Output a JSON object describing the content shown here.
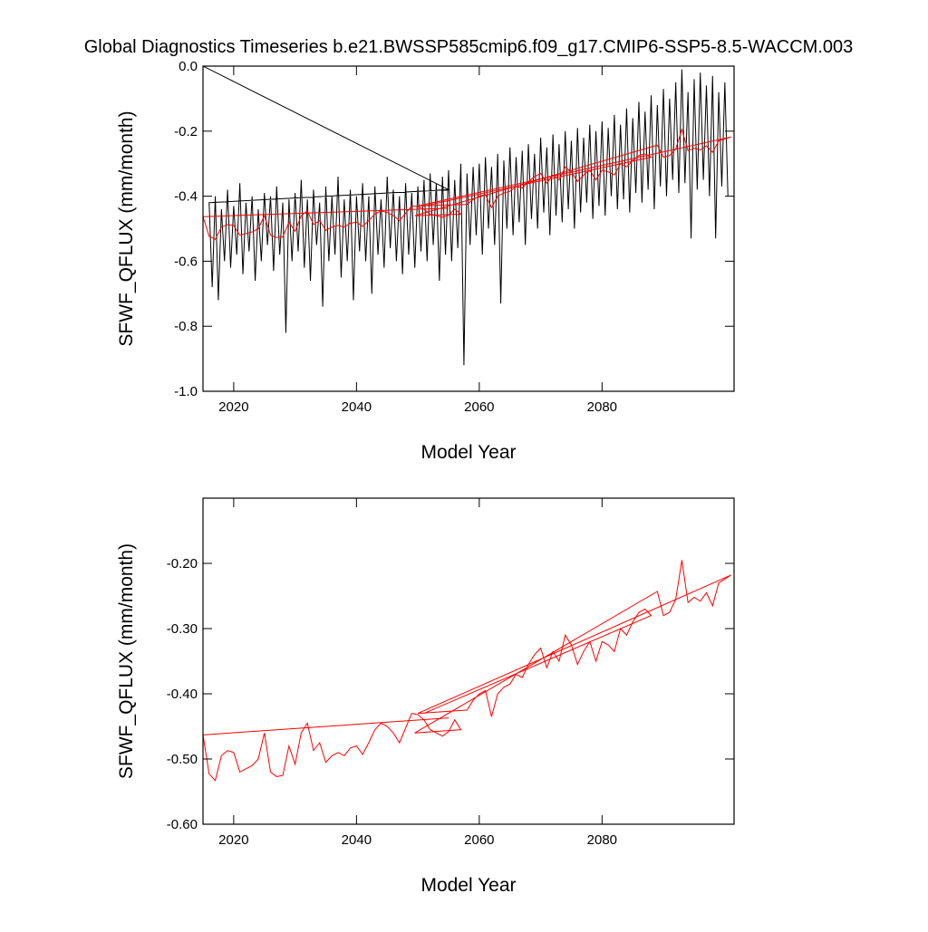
{
  "chart_data": [
    {
      "type": "line",
      "title": "Global Diagnostics Timeseries b.e21.BWSSP585cmip6.f09_g17.CMIP6-SSP5-8.5-WACCM.003",
      "x_label": "Model Year",
      "y_label": "SFWF_QFLUX (mm/month)",
      "xlim": [
        2015,
        2101.5
      ],
      "xticks": [
        2020,
        2040,
        2060,
        2080
      ],
      "ylim": [
        -1,
        0
      ],
      "yticks": [
        {
          "value": 0,
          "label": "0.0"
        },
        -0.2,
        -0.4,
        -0.6,
        -0.8,
        {
          "value": -1,
          "label": "-1.0"
        }
      ],
      "series": [
        {
          "color": "#000000",
          "x": [
            2015,
            2055,
            2016,
            2016.5,
            2017,
            2017.5,
            2018,
            2018.5,
            2019,
            2019.5,
            2020,
            2020.5,
            2021,
            2021.5,
            2022,
            2022.5,
            2023,
            2023.5,
            2024,
            2024.5,
            2025,
            2025.5,
            2026,
            2026.5,
            2027,
            2027.5,
            2028,
            2028.5,
            2029,
            2029.5,
            2030,
            2030.5,
            2031,
            2031.5,
            2032,
            2032.5,
            2033,
            2033.5,
            2034,
            2034.5,
            2035,
            2035.5,
            2036,
            2036.5,
            2037,
            2037.5,
            2038,
            2038.5,
            2039,
            2039.5,
            2040,
            2040.5,
            2041,
            2041.5,
            2042,
            2042.5,
            2043,
            2043.5,
            2044,
            2044.5,
            2045,
            2045.5,
            2046,
            2046.5,
            2047,
            2047.5,
            2048,
            2048.5,
            2049,
            2049.5,
            2050,
            2050.5,
            2051,
            2051.5,
            2052,
            2052.5,
            2053,
            2053.5,
            2054,
            2054.5,
            2055,
            2055.5,
            2056,
            2056.5,
            2057,
            2057.5,
            2058,
            2058.5,
            2059,
            2059.5,
            2060,
            2060.5,
            2061,
            2061.5,
            2062,
            2062.5,
            2063,
            2063.5,
            2064,
            2064.5,
            2065,
            2065.5,
            2066,
            2066.5,
            2067,
            2067.5,
            2068,
            2068.5,
            2069,
            2069.5,
            2070,
            2070.5,
            2071,
            2071.5,
            2072,
            2072.5,
            2073,
            2073.5,
            2074,
            2074.5,
            2075,
            2075.5,
            2076,
            2076.5,
            2077,
            2077.5,
            2078,
            2078.5,
            2079,
            2079.5,
            2080,
            2080.5,
            2081,
            2081.5,
            2082,
            2082.5,
            2083,
            2083.5,
            2084,
            2084.5,
            2085,
            2085.5,
            2086,
            2086.5,
            2087,
            2087.5,
            2088,
            2088.5,
            2089,
            2089.5,
            2090,
            2090.5,
            2091,
            2091.5,
            2092,
            2092.5,
            2093,
            2093.5,
            2094,
            2094.5,
            2095,
            2095.5,
            2096,
            2096.5,
            2097,
            2097.5,
            2098,
            2098.5,
            2099,
            2099.5,
            2100,
            2100.5
          ],
          "values": [
            0,
            -0.38,
            -0.42,
            -0.68,
            -0.4,
            -0.72,
            -0.44,
            -0.6,
            -0.38,
            -0.62,
            -0.43,
            -0.58,
            -0.36,
            -0.64,
            -0.42,
            -0.57,
            -0.4,
            -0.66,
            -0.44,
            -0.6,
            -0.39,
            -0.55,
            -0.4,
            -0.63,
            -0.37,
            -0.58,
            -0.42,
            -0.82,
            -0.41,
            -0.6,
            -0.39,
            -0.57,
            -0.35,
            -0.62,
            -0.41,
            -0.66,
            -0.38,
            -0.55,
            -0.42,
            -0.74,
            -0.37,
            -0.6,
            -0.4,
            -0.58,
            -0.34,
            -0.65,
            -0.41,
            -0.6,
            -0.38,
            -0.72,
            -0.4,
            -0.57,
            -0.36,
            -0.6,
            -0.4,
            -0.7,
            -0.37,
            -0.58,
            -0.41,
            -0.62,
            -0.34,
            -0.56,
            -0.38,
            -0.6,
            -0.4,
            -0.64,
            -0.36,
            -0.58,
            -0.39,
            -0.62,
            -0.37,
            -0.57,
            -0.35,
            -0.6,
            -0.33,
            -0.55,
            -0.36,
            -0.66,
            -0.34,
            -0.58,
            -0.32,
            -0.6,
            -0.35,
            -0.56,
            -0.3,
            -0.92,
            -0.33,
            -0.55,
            -0.31,
            -0.52,
            -0.3,
            -0.58,
            -0.28,
            -0.5,
            -0.31,
            -0.55,
            -0.27,
            -0.73,
            -0.29,
            -0.5,
            -0.25,
            -0.52,
            -0.28,
            -0.48,
            -0.26,
            -0.55,
            -0.24,
            -0.47,
            -0.27,
            -0.5,
            -0.22,
            -0.45,
            -0.25,
            -0.52,
            -0.21,
            -0.46,
            -0.24,
            -0.48,
            -0.2,
            -0.44,
            -0.23,
            -0.5,
            -0.19,
            -0.45,
            -0.22,
            -0.42,
            -0.18,
            -0.47,
            -0.2,
            -0.43,
            -0.17,
            -0.46,
            -0.19,
            -0.4,
            -0.15,
            -0.44,
            -0.18,
            -0.41,
            -0.13,
            -0.45,
            -0.16,
            -0.39,
            -0.11,
            -0.42,
            -0.14,
            -0.38,
            -0.09,
            -0.44,
            -0.12,
            -0.37,
            -0.07,
            -0.4,
            -0.1,
            -0.35,
            -0.05,
            -0.39,
            -0.01,
            -0.36,
            -0.08,
            -0.53,
            -0.04,
            -0.38,
            -0.02,
            -0.35,
            -0.06,
            -0.4,
            -0.03,
            -0.53,
            -0.08,
            -0.37,
            -0.05,
            -0.4
          ]
        },
        {
          "color": "#ff0000",
          "x": [
            2055,
            2015,
            2016,
            2017,
            2018,
            2019,
            2020,
            2021,
            2022,
            2023,
            2024,
            2025,
            2026,
            2027,
            2028,
            2029,
            2030,
            2031,
            2032,
            2033,
            2034,
            2035,
            2036,
            2037,
            2038,
            2039,
            2040,
            2041,
            2042,
            2043,
            2044,
            2045,
            2046,
            2047,
            2049,
            2050,
            2051,
            2052,
            2053,
            2054,
            2055,
            2056,
            2057,
            2049.5,
            2089,
            2090,
            2091,
            2092,
            2093,
            2094,
            2095,
            2096,
            2097,
            2098,
            2099,
            2101,
            2050,
            2058,
            2059,
            2060,
            2061,
            2062,
            2063,
            2064,
            2065,
            2066,
            2067,
            2068,
            2069,
            2070,
            2071,
            2072,
            2073,
            2074,
            2075,
            2076,
            2077,
            2078,
            2079,
            2080,
            2081,
            2082,
            2083,
            2084,
            2085,
            2086,
            2087,
            2088,
            2051,
            2088
          ],
          "values": [
            -0.437,
            -0.463,
            -0.523,
            -0.533,
            -0.495,
            -0.487,
            -0.49,
            -0.52,
            -0.515,
            -0.51,
            -0.5,
            -0.46,
            -0.52,
            -0.527,
            -0.525,
            -0.48,
            -0.508,
            -0.46,
            -0.445,
            -0.487,
            -0.475,
            -0.505,
            -0.495,
            -0.49,
            -0.495,
            -0.483,
            -0.48,
            -0.493,
            -0.475,
            -0.455,
            -0.445,
            -0.45,
            -0.46,
            -0.475,
            -0.43,
            -0.432,
            -0.44,
            -0.455,
            -0.46,
            -0.465,
            -0.458,
            -0.44,
            -0.455,
            -0.46,
            -0.243,
            -0.28,
            -0.275,
            -0.255,
            -0.195,
            -0.26,
            -0.252,
            -0.258,
            -0.245,
            -0.265,
            -0.23,
            -0.218,
            -0.43,
            -0.425,
            -0.41,
            -0.4,
            -0.395,
            -0.435,
            -0.4,
            -0.39,
            -0.385,
            -0.37,
            -0.375,
            -0.355,
            -0.34,
            -0.33,
            -0.36,
            -0.335,
            -0.35,
            -0.31,
            -0.325,
            -0.355,
            -0.335,
            -0.32,
            -0.35,
            -0.32,
            -0.325,
            -0.335,
            -0.3,
            -0.31,
            -0.29,
            -0.275,
            -0.27,
            -0.28,
            -0.43,
            -0.28
          ]
        }
      ]
    },
    {
      "type": "line",
      "x_label": "Model Year",
      "y_label": "SFWF_QFLUX (mm/month)",
      "xlim": [
        2015,
        2101.5
      ],
      "xticks": [
        2020,
        2040,
        2060,
        2080
      ],
      "ylim": [
        -0.6,
        -0.1
      ],
      "yticks": [
        {
          "value": -0.2,
          "label": "-0.20"
        },
        {
          "value": -0.3,
          "label": "-0.30"
        },
        {
          "value": -0.4,
          "label": "-0.40"
        },
        {
          "value": -0.5,
          "label": "-0.50"
        },
        {
          "value": -0.6,
          "label": "-0.60"
        }
      ],
      "series": [
        {
          "color": "#ff0000",
          "x": [
            2055,
            2015,
            2016,
            2017,
            2018,
            2019,
            2020,
            2021,
            2022,
            2023,
            2024,
            2025,
            2026,
            2027,
            2028,
            2029,
            2030,
            2031,
            2032,
            2033,
            2034,
            2035,
            2036,
            2037,
            2038,
            2039,
            2040,
            2041,
            2042,
            2043,
            2044,
            2045,
            2046,
            2047,
            2049,
            2050,
            2051,
            2052,
            2053,
            2054,
            2055,
            2056,
            2057,
            2049.5,
            2089,
            2090,
            2091,
            2092,
            2093,
            2094,
            2095,
            2096,
            2097,
            2098,
            2099,
            2101,
            2050,
            2058,
            2059,
            2060,
            2061,
            2062,
            2063,
            2064,
            2065,
            2066,
            2067,
            2068,
            2069,
            2070,
            2071,
            2072,
            2073,
            2074,
            2075,
            2076,
            2077,
            2078,
            2079,
            2080,
            2081,
            2082,
            2083,
            2084,
            2085,
            2086,
            2087,
            2088,
            2051,
            2088
          ],
          "values": [
            -0.437,
            -0.463,
            -0.523,
            -0.533,
            -0.495,
            -0.487,
            -0.49,
            -0.52,
            -0.515,
            -0.51,
            -0.5,
            -0.46,
            -0.52,
            -0.527,
            -0.525,
            -0.48,
            -0.508,
            -0.46,
            -0.445,
            -0.487,
            -0.475,
            -0.505,
            -0.495,
            -0.49,
            -0.495,
            -0.483,
            -0.48,
            -0.493,
            -0.475,
            -0.455,
            -0.445,
            -0.45,
            -0.46,
            -0.475,
            -0.43,
            -0.432,
            -0.44,
            -0.455,
            -0.46,
            -0.465,
            -0.458,
            -0.44,
            -0.455,
            -0.46,
            -0.243,
            -0.28,
            -0.275,
            -0.255,
            -0.195,
            -0.26,
            -0.252,
            -0.258,
            -0.245,
            -0.265,
            -0.23,
            -0.218,
            -0.43,
            -0.425,
            -0.41,
            -0.4,
            -0.395,
            -0.435,
            -0.4,
            -0.39,
            -0.385,
            -0.37,
            -0.375,
            -0.355,
            -0.34,
            -0.33,
            -0.36,
            -0.335,
            -0.35,
            -0.31,
            -0.325,
            -0.355,
            -0.335,
            -0.32,
            -0.35,
            -0.32,
            -0.325,
            -0.335,
            -0.3,
            -0.31,
            -0.29,
            -0.275,
            -0.27,
            -0.28,
            -0.43,
            -0.28
          ]
        }
      ]
    }
  ]
}
